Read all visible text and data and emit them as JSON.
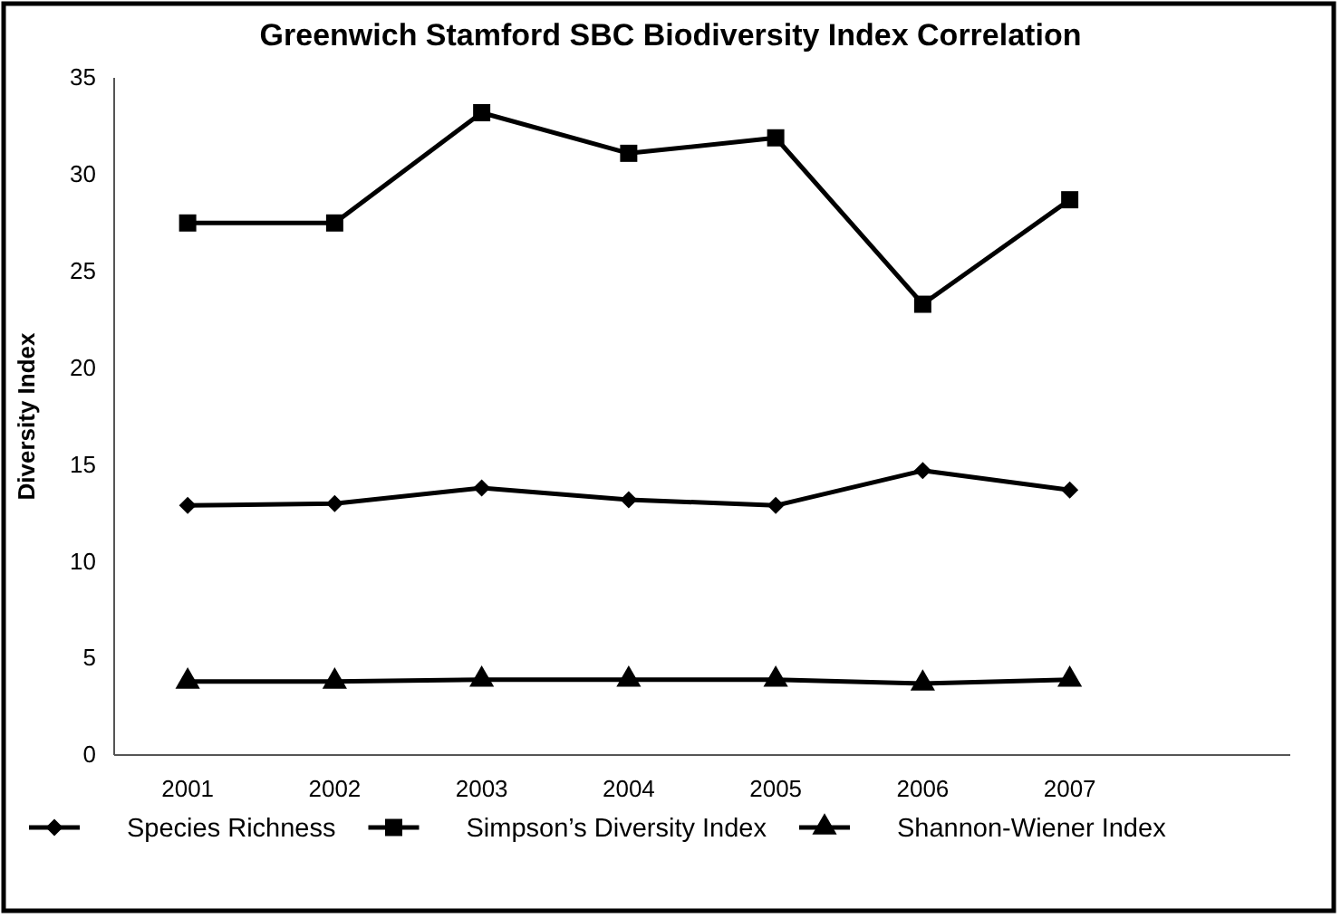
{
  "chart_data": {
    "type": "line",
    "title": "Greenwich Stamford SBC Biodiversity Index Correlation",
    "ylabel": "Diversity Index",
    "categories": [
      "2001",
      "2002",
      "2003",
      "2004",
      "2005",
      "2006",
      "2007"
    ],
    "series": [
      {
        "name": "Species Richness",
        "color": "#000000",
        "marker": "diamond",
        "values": [
          12.9,
          13.0,
          13.8,
          13.2,
          12.9,
          14.7,
          13.7
        ]
      },
      {
        "name": "Simpson’s Diversity Index",
        "color": "#000000",
        "marker": "square",
        "values": [
          27.5,
          27.5,
          33.2,
          31.1,
          31.9,
          23.3,
          28.7
        ]
      },
      {
        "name": "Shannon-Wiener Index",
        "color": "#000000",
        "marker": "triangle",
        "values": [
          3.8,
          3.8,
          3.9,
          3.9,
          3.9,
          3.7,
          3.9
        ]
      }
    ],
    "ylim": [
      0,
      35
    ],
    "yticks": [
      0,
      5,
      10,
      15,
      20,
      25,
      30,
      35
    ],
    "grid": false,
    "legend": "bottom",
    "line_style": "solid"
  }
}
